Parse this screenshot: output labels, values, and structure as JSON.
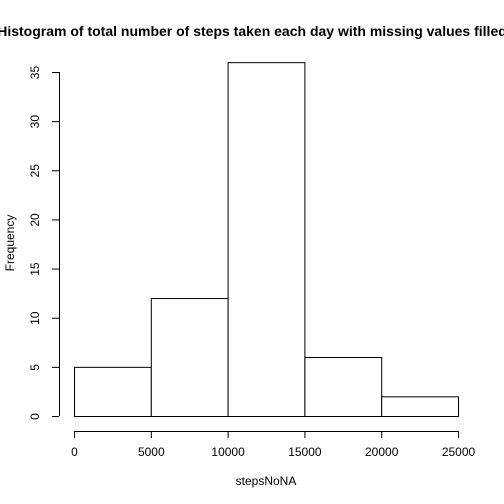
{
  "chart_data": {
    "type": "bar",
    "title": "Histogram of total number of steps taken each day with missing values filled",
    "xlabel": "stepsNoNA",
    "ylabel": "Frequency",
    "bins": [
      {
        "from": 0,
        "to": 5000,
        "count": 5
      },
      {
        "from": 5000,
        "to": 10000,
        "count": 12
      },
      {
        "from": 10000,
        "to": 15000,
        "count": 36
      },
      {
        "from": 15000,
        "to": 20000,
        "count": 6
      },
      {
        "from": 20000,
        "to": 25000,
        "count": 2
      }
    ],
    "xlim": [
      0,
      25000
    ],
    "ylim": [
      0,
      35
    ],
    "x_ticks": [
      0,
      5000,
      10000,
      15000,
      20000,
      25000
    ],
    "y_ticks": [
      0,
      5,
      10,
      15,
      20,
      25,
      30,
      35
    ],
    "grid": false,
    "bar_fill": "#ffffff",
    "bar_stroke": "#000000"
  }
}
